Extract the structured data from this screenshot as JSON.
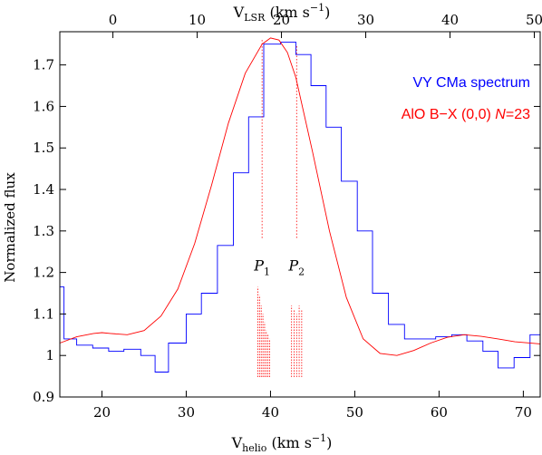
{
  "chart_data": {
    "type": "line",
    "title": "",
    "xlabel": {
      "main": "V",
      "sub": "helio",
      "rest": " (km s",
      "sup": "−1",
      "close": ")"
    },
    "x2label": {
      "main": "V",
      "sub": "LSR",
      "rest": " (km s",
      "sup": "−1",
      "close": ")"
    },
    "ylabel": "Normalized flux",
    "xlim": [
      15,
      72
    ],
    "ylim": [
      0.9,
      1.78
    ],
    "x2_offset": -21.3,
    "xticks": [
      20,
      30,
      40,
      50,
      60,
      70
    ],
    "x2ticks": [
      0,
      10,
      20,
      30,
      40,
      50
    ],
    "yticks": [
      0.9,
      1,
      1.1,
      1.2,
      1.3,
      1.4,
      1.5,
      1.6,
      1.7
    ],
    "legend_position": "top-right",
    "series": [
      {
        "name": "VY CMa spectrum",
        "color": "#0000ff",
        "style": "step",
        "x": [
          15.0,
          15.5,
          17.0,
          18.9,
          20.8,
          22.6,
          24.6,
          26.3,
          27.9,
          30.0,
          31.8,
          33.7,
          35.6,
          37.4,
          39.2,
          41.2,
          43.0,
          44.8,
          46.6,
          48.4,
          50.3,
          52.1,
          54.0,
          55.9,
          57.7,
          59.6,
          61.5,
          63.3,
          65.2,
          67.0,
          68.9,
          70.8,
          72.0
        ],
        "y": [
          1.165,
          1.04,
          1.025,
          1.018,
          1.01,
          1.015,
          1.0,
          0.96,
          1.03,
          1.1,
          1.15,
          1.265,
          1.44,
          1.575,
          1.75,
          1.755,
          1.725,
          1.65,
          1.55,
          1.42,
          1.3,
          1.15,
          1.075,
          1.04,
          1.04,
          1.045,
          1.05,
          1.035,
          1.01,
          0.97,
          0.995,
          1.05,
          1.05
        ]
      },
      {
        "name": "AlO B−X (0,0) N=23",
        "legend": {
          "text": "AlO B−X (0,0) ",
          "italic": "N",
          "after": "=23"
        },
        "color": "#ff0000",
        "style": "line",
        "x": [
          15,
          17,
          19,
          20,
          21,
          23,
          25,
          27,
          29,
          31,
          33,
          35,
          37,
          39,
          40,
          41,
          42,
          43,
          45,
          47,
          49,
          51,
          53,
          55,
          57,
          59,
          61,
          63,
          65,
          67,
          69,
          72
        ],
        "y": [
          1.03,
          1.045,
          1.053,
          1.055,
          1.053,
          1.05,
          1.06,
          1.095,
          1.16,
          1.27,
          1.41,
          1.56,
          1.68,
          1.75,
          1.765,
          1.76,
          1.73,
          1.67,
          1.49,
          1.3,
          1.14,
          1.04,
          1.005,
          1.0,
          1.012,
          1.03,
          1.044,
          1.05,
          1.046,
          1.04,
          1.033,
          1.028
        ]
      }
    ],
    "annotations": [
      {
        "label": "P",
        "sub": "1",
        "x": 39.0,
        "line_top": 1.76
      },
      {
        "label": "P",
        "sub": "2",
        "x": 43.1,
        "line_top": 1.745
      }
    ],
    "components": [
      {
        "x": 38.5,
        "y": 1.165
      },
      {
        "x": 38.7,
        "y": 1.145
      },
      {
        "x": 38.9,
        "y": 1.12
      },
      {
        "x": 39.1,
        "y": 1.1
      },
      {
        "x": 39.3,
        "y": 1.08
      },
      {
        "x": 39.5,
        "y": 1.06
      },
      {
        "x": 39.7,
        "y": 1.05
      },
      {
        "x": 39.9,
        "y": 1.04
      },
      {
        "x": 42.5,
        "y": 1.12
      },
      {
        "x": 42.8,
        "y": 1.11
      },
      {
        "x": 43.1,
        "y": 1.1
      },
      {
        "x": 43.4,
        "y": 1.12
      },
      {
        "x": 43.7,
        "y": 1.11
      }
    ]
  }
}
